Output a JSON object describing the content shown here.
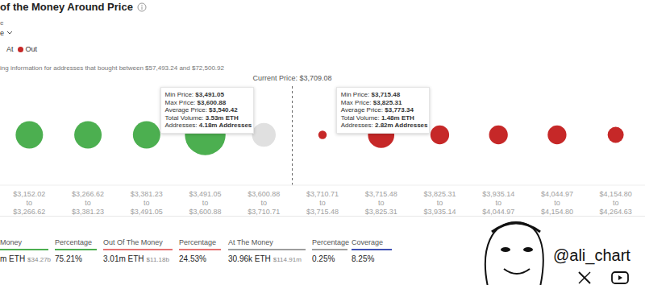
{
  "header": {
    "title": "of the Money Around Price",
    "selector_label": "e",
    "selector_value": "e",
    "legend_items": [
      {
        "label": "At"
      },
      {
        "label": "Out",
        "color": "#c62828"
      }
    ],
    "info": "ing information for addresses that bought between $57,493.24 and $72,500.92"
  },
  "chart_data": {
    "type": "bubble",
    "categories": [
      "$3,152.02 to $3,266.62",
      "$3,266.62 to $3,381.23",
      "$3,381.23 to $3,491.05",
      "$3,491.05 to $3,600.88",
      "$3,600.88 to $3,710.71",
      "$3,710.71 to $3,715.48",
      "$3,715.48 to $3,825.31",
      "$3,825.31 to $3,935.14",
      "$3,935.14 to $4,044.97",
      "$4,044.97 to $4,154.80",
      "$4,154.80 to $4,264.63"
    ],
    "values": [
      1.6,
      1.6,
      1.6,
      3.53,
      1.2,
      0.15,
      1.48,
      0.75,
      0.75,
      0.75,
      0.55
    ],
    "colors": [
      "#4caf50",
      "#4caf50",
      "#4caf50",
      "#4caf50",
      "#e0e0e0",
      "#c62828",
      "#c62828",
      "#c62828",
      "#c62828",
      "#c62828",
      "#c62828"
    ],
    "tick_labels": "x",
    "current_price": {
      "value": 3709.08,
      "label": "Current Price: $3,709.08"
    }
  },
  "tooltips": [
    {
      "rows": [
        [
          "Min Price:",
          "$3,491.05"
        ],
        [
          "Max Price:",
          "$3,600.88"
        ],
        [
          "Average Price:",
          "$3,540.42"
        ],
        [
          "Total Volume:",
          "3.53m ETH"
        ],
        [
          "Addresses:",
          "4.18m Addresses"
        ]
      ]
    },
    {
      "rows": [
        [
          "Min Price:",
          "$3,715.48"
        ],
        [
          "Max Price:",
          "$3,825.31"
        ],
        [
          "Average Price:",
          "$3,773.34"
        ],
        [
          "Total Volume:",
          "1.48m ETH"
        ],
        [
          "Addresses:",
          "2.82m Addresses"
        ]
      ]
    }
  ],
  "summary": [
    {
      "title": "Money",
      "value": "m ETH",
      "sub": "$34.27b",
      "color": "#4caf50"
    },
    {
      "title": "Percentage",
      "value": "75.21%",
      "color": "#4caf50"
    },
    {
      "title": "Out Of The Money",
      "value": "3.01m ETH",
      "sub": "$11.18b",
      "color": "#e57373"
    },
    {
      "title": "Percentage",
      "value": "24.53%",
      "color": "#e57373"
    },
    {
      "title": "At The Money",
      "value": "30.96k ETH",
      "sub": "$114.91m",
      "color": "#9e9e9e"
    },
    {
      "title": "Percentage",
      "value": "0.25%",
      "color": "#9e9e9e"
    },
    {
      "title": "Coverage",
      "value": "8.25%",
      "color": "#3f51b5"
    }
  ],
  "watermark": "@ali_chart"
}
